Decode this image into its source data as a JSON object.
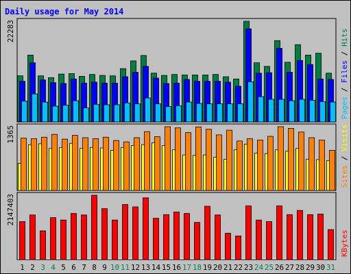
{
  "chart_data": {
    "type": "bar",
    "title": "Daily usage for May 2014",
    "categories": [
      "1",
      "2",
      "3",
      "4",
      "5",
      "6",
      "7",
      "8",
      "9",
      "10",
      "11",
      "12",
      "13",
      "14",
      "15",
      "16",
      "17",
      "18",
      "19",
      "20",
      "21",
      "22",
      "23",
      "24",
      "25",
      "26",
      "27",
      "28",
      "29",
      "30",
      "31"
    ],
    "weekend_days": [
      "3",
      "4",
      "10",
      "11",
      "17",
      "18",
      "24",
      "25",
      "31"
    ],
    "panels": [
      {
        "id": "hits-files-pages",
        "max_label": "22283",
        "ymax": 22283,
        "legend": [
          "Pages",
          "Files",
          "Hits"
        ],
        "series": [
          {
            "name": "Hits",
            "color": "#008040",
            "values": [
              10200,
              14800,
              10200,
              9800,
              10600,
              10700,
              10100,
              10500,
              10300,
              10200,
              11800,
              13500,
              14700,
              10800,
              10300,
              10500,
              10400,
              10400,
              10400,
              10500,
              10000,
              9500,
              22283,
              13100,
              12300,
              18000,
              13200,
              17100,
              14800,
              15200,
              10800
            ]
          },
          {
            "name": "Files",
            "color": "#0000ff",
            "values": [
              9000,
              13100,
              9300,
              8700,
              8500,
              9500,
              8600,
              8800,
              8600,
              8600,
              10000,
              11000,
              12300,
              9700,
              8500,
              8600,
              9400,
              9000,
              9000,
              9000,
              8800,
              7900,
              20600,
              10800,
              10900,
              16300,
              11000,
              13600,
              12700,
              9500,
              9400
            ]
          },
          {
            "name": "Pages",
            "color": "#00c0ff",
            "values": [
              4600,
              6200,
              4400,
              3500,
              3700,
              4700,
              3100,
              3900,
              3800,
              3800,
              4200,
              4000,
              5300,
              4000,
              3400,
              3600,
              4400,
              4100,
              4000,
              4000,
              4000,
              4000,
              8900,
              5600,
              5000,
              5000,
              4700,
              5000,
              4800,
              4500,
              4400
            ]
          }
        ]
      },
      {
        "id": "sites-visits",
        "max_label": "1365",
        "ymax": 1365,
        "legend": [
          "Sites",
          "Visits"
        ],
        "series": [
          {
            "name": "Visits",
            "color": "#ffff00",
            "values": [
              580,
              980,
              1000,
              900,
              920,
              1010,
              900,
              920,
              910,
              860,
              920,
              960,
              980,
              1020,
              960,
              870,
              760,
              750,
              760,
              710,
              670,
              870,
              990,
              800,
              790,
              870,
              840,
              900,
              670,
              660,
              640
            ]
          },
          {
            "name": "Sites",
            "color": "#ff8000",
            "values": [
              1120,
              1110,
              1140,
              1200,
              1100,
              1180,
              1130,
              1110,
              1140,
              1070,
              1040,
              1130,
              1260,
              1150,
              1365,
              1340,
              1240,
              1360,
              1310,
              1190,
              1290,
              1060,
              1110,
              1080,
              1160,
              1365,
              1330,
              1250,
              1130,
              1080,
              860
            ]
          }
        ]
      },
      {
        "id": "kbytes",
        "max_label": "2147403",
        "ymax": 2147403,
        "legend": [
          "KBytes"
        ],
        "series": [
          {
            "name": "KBytes",
            "color": "#ff0000",
            "values": [
              1270000,
              1490000,
              960000,
              1400000,
              1320000,
              1540000,
              1490000,
              2147403,
              1700000,
              1320000,
              1840000,
              1760000,
              2060000,
              1380000,
              1500000,
              1590000,
              1540000,
              1240000,
              1780000,
              1490000,
              880000,
              790000,
              1790000,
              1320000,
              1270000,
              1790000,
              1500000,
              1640000,
              1500000,
              1520000,
              1000000
            ]
          }
        ]
      }
    ]
  },
  "colors": {
    "title": "#0000ff",
    "background": "#c0c0c0",
    "plot_background": "#c0c0c0",
    "weekday_label": "#000000",
    "weekend_label": "#00805c"
  }
}
